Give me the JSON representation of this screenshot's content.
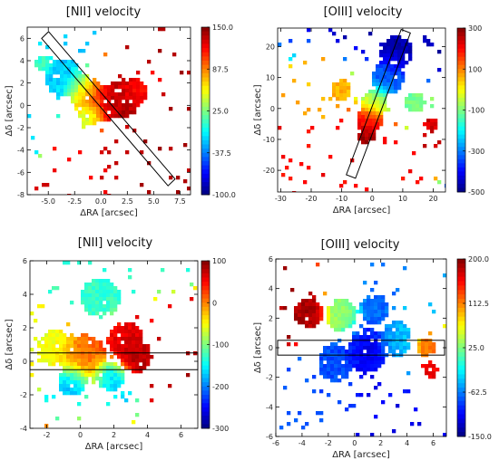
{
  "chart_data": [
    {
      "type": "heatmap",
      "title": "[NII] velocity",
      "xlabel": "ΔRA [arcsec]",
      "ylabel": "Δδ [arcsec]",
      "xticks": [
        "-5.0",
        "-2.5",
        "0.0",
        "2.5",
        "5.0",
        "7.5"
      ],
      "yticks": [
        "6",
        "4",
        "2",
        "0",
        "-2",
        "-4",
        "-6",
        "-8"
      ],
      "xlim": [
        -7,
        8.5
      ],
      "ylim": [
        -8,
        7
      ],
      "colorbar": {
        "ticks": [
          "150.0",
          "87.5",
          "25.0",
          "-37.5",
          "-100.0"
        ],
        "range": [
          -100,
          150
        ]
      },
      "overlay": "slit",
      "blobs": [
        {
          "x": -3.5,
          "y": 2.5,
          "r": 1.6,
          "v": -20
        },
        {
          "x": -1.5,
          "y": 1.2,
          "r": 1.4,
          "v": 60
        },
        {
          "x": 0,
          "y": 0.2,
          "r": 1.6,
          "v": 125
        },
        {
          "x": 2,
          "y": 0.6,
          "r": 1.6,
          "v": 140
        },
        {
          "x": 3.2,
          "y": 1.2,
          "r": 1.1,
          "v": 110
        },
        {
          "x": -1,
          "y": -0.8,
          "r": 1.0,
          "v": 25
        },
        {
          "x": -5.5,
          "y": 3.8,
          "r": 0.7,
          "v": 10
        }
      ]
    },
    {
      "type": "heatmap",
      "title": "[OIII] velocity",
      "xlabel": "ΔRA [arcsec]",
      "ylabel": "Δδ [arcsec]",
      "xticks": [
        "-30",
        "-20",
        "-10",
        "0",
        "10",
        "20"
      ],
      "yticks": [
        "20",
        "10",
        "0",
        "-10",
        "-20"
      ],
      "xlim": [
        -31,
        24
      ],
      "ylim": [
        -27,
        26
      ],
      "colorbar": {
        "ticks": [
          "300",
          "100",
          "-100",
          "-300",
          "-500"
        ],
        "range": [
          -500,
          300
        ]
      },
      "overlay": "slit",
      "blobs": [
        {
          "x": 8,
          "y": 18,
          "r": 5,
          "v": -460
        },
        {
          "x": 5,
          "y": 10,
          "r": 5,
          "v": -320
        },
        {
          "x": 1,
          "y": 2,
          "r": 4,
          "v": -60
        },
        {
          "x": -1,
          "y": -4,
          "r": 4,
          "v": 200
        },
        {
          "x": -2,
          "y": -9,
          "r": 2.5,
          "v": 280
        },
        {
          "x": -10,
          "y": 6,
          "r": 3,
          "v": 60
        },
        {
          "x": 14,
          "y": 2,
          "r": 3,
          "v": -100
        },
        {
          "x": 19,
          "y": -5,
          "r": 2,
          "v": 230
        }
      ]
    },
    {
      "type": "heatmap",
      "title": "[NII] velocity",
      "xlabel": "ΔRA [arcsec]",
      "ylabel": "Δδ [arcsec]",
      "xticks": [
        "-2",
        "0",
        "2",
        "4",
        "6"
      ],
      "yticks": [
        "6",
        "4",
        "2",
        "0",
        "-2",
        "-4"
      ],
      "xlim": [
        -3,
        7
      ],
      "ylim": [
        -4,
        6
      ],
      "colorbar": {
        "ticks": [
          "100",
          "0",
          "-100",
          "-200",
          "-300"
        ],
        "range": [
          -300,
          100
        ]
      },
      "overlay": "slit",
      "blobs": [
        {
          "x": 1.2,
          "y": 3.8,
          "r": 1.1,
          "v": -130
        },
        {
          "x": -1.5,
          "y": 0.8,
          "r": 1.0,
          "v": -60
        },
        {
          "x": 0.2,
          "y": 0.2,
          "r": 1.3,
          "v": 10
        },
        {
          "x": 2.7,
          "y": 1.3,
          "r": 1.0,
          "v": 60
        },
        {
          "x": 3.3,
          "y": 0.3,
          "r": 0.9,
          "v": 80
        },
        {
          "x": -0.5,
          "y": -1.2,
          "r": 0.8,
          "v": -190
        },
        {
          "x": 1.8,
          "y": -0.9,
          "r": 0.8,
          "v": -170
        }
      ]
    },
    {
      "type": "heatmap",
      "title": "[OIII] velocity",
      "xlabel": "ΔRA [arcsec]",
      "ylabel": "Δδ [arcsec]",
      "xticks": [
        "-6",
        "-4",
        "-2",
        "0",
        "2",
        "4",
        "6"
      ],
      "yticks": [
        "6",
        "4",
        "2",
        "0",
        "-2",
        "-4",
        "-6"
      ],
      "xlim": [
        -6,
        7
      ],
      "ylim": [
        -6,
        6
      ],
      "colorbar": {
        "ticks": [
          "200.0",
          "112.5",
          "25.0",
          "-62.5",
          "-150.0"
        ],
        "range": [
          -150,
          200
        ]
      },
      "overlay": "slit",
      "blobs": [
        {
          "x": -3.5,
          "y": 2.3,
          "r": 1.0,
          "v": 185
        },
        {
          "x": -1,
          "y": 2.2,
          "r": 1.1,
          "v": 30
        },
        {
          "x": 1.5,
          "y": 2.6,
          "r": 1.0,
          "v": -70
        },
        {
          "x": 1,
          "y": -0.2,
          "r": 1.4,
          "v": -110
        },
        {
          "x": -1.5,
          "y": -1,
          "r": 1.2,
          "v": -80
        },
        {
          "x": 3.2,
          "y": 0.6,
          "r": 1.1,
          "v": -40
        },
        {
          "x": 5.5,
          "y": 0,
          "r": 0.6,
          "v": 120
        },
        {
          "x": 5.8,
          "y": -1.5,
          "r": 0.5,
          "v": 160
        }
      ]
    }
  ]
}
